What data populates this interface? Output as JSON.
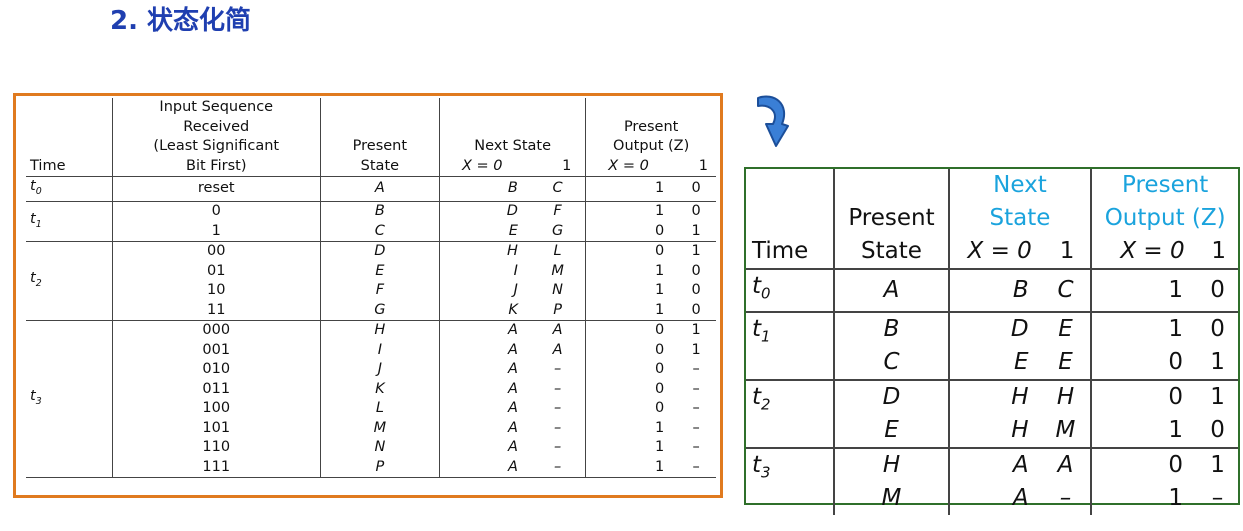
{
  "title": "2. 状态化简",
  "left_table": {
    "headers": {
      "time": "Time",
      "input_l1": "Input Sequence",
      "input_l2": "Received",
      "input_l3": "(Least Significant",
      "input_l4": "Bit First)",
      "ps_l1": "Present",
      "ps_l2": "State",
      "next_l1": "Next State",
      "next_x0": "X = 0",
      "next_x1": "1",
      "out_l1": "Present",
      "out_l2": "Output (Z)",
      "out_x0": "X = 0",
      "out_x1": "1"
    },
    "groups": [
      {
        "time": "t0",
        "rows": [
          {
            "input": "reset",
            "ps": "A",
            "n0": "B",
            "n1": "C",
            "o0": "1",
            "o1": "0"
          }
        ]
      },
      {
        "time": "t1",
        "rows": [
          {
            "input": "0",
            "ps": "B",
            "n0": "D",
            "n1": "F",
            "o0": "1",
            "o1": "0"
          },
          {
            "input": "1",
            "ps": "C",
            "n0": "E",
            "n1": "G",
            "o0": "0",
            "o1": "1"
          }
        ]
      },
      {
        "time": "t2",
        "rows": [
          {
            "input": "00",
            "ps": "D",
            "n0": "H",
            "n1": "L",
            "o0": "0",
            "o1": "1"
          },
          {
            "input": "01",
            "ps": "E",
            "n0": "I",
            "n1": "M",
            "o0": "1",
            "o1": "0"
          },
          {
            "input": "10",
            "ps": "F",
            "n0": "J",
            "n1": "N",
            "o0": "1",
            "o1": "0"
          },
          {
            "input": "11",
            "ps": "G",
            "n0": "K",
            "n1": "P",
            "o0": "1",
            "o1": "0"
          }
        ]
      },
      {
        "time": "t3",
        "rows": [
          {
            "input": "000",
            "ps": "H",
            "n0": "A",
            "n1": "A",
            "o0": "0",
            "o1": "1"
          },
          {
            "input": "001",
            "ps": "I",
            "n0": "A",
            "n1": "A",
            "o0": "0",
            "o1": "1"
          },
          {
            "input": "010",
            "ps": "J",
            "n0": "A",
            "n1": "–",
            "o0": "0",
            "o1": "–"
          },
          {
            "input": "011",
            "ps": "K",
            "n0": "A",
            "n1": "–",
            "o0": "0",
            "o1": "–"
          },
          {
            "input": "100",
            "ps": "L",
            "n0": "A",
            "n1": "–",
            "o0": "0",
            "o1": "–"
          },
          {
            "input": "101",
            "ps": "M",
            "n0": "A",
            "n1": "–",
            "o0": "1",
            "o1": "–"
          },
          {
            "input": "110",
            "ps": "N",
            "n0": "A",
            "n1": "–",
            "o0": "1",
            "o1": "–"
          },
          {
            "input": "111",
            "ps": "P",
            "n0": "A",
            "n1": "–",
            "o0": "1",
            "o1": "–"
          }
        ]
      }
    ]
  },
  "right_table": {
    "headers": {
      "time": "Time",
      "ps_l1": "Present",
      "ps_l2": "State",
      "next_l1": "Next",
      "next_l2": "State",
      "next_x0": "X = 0",
      "next_x1": "1",
      "out_l1": "Present",
      "out_l2": "Output (Z)",
      "out_x0": "X = 0",
      "out_x1": "1"
    },
    "groups": [
      {
        "time": "t0",
        "rows": [
          {
            "ps": "A",
            "n0": "B",
            "n1": "C",
            "o0": "1",
            "o1": "0"
          }
        ]
      },
      {
        "time": "t1",
        "rows": [
          {
            "ps": "B",
            "n0": "D",
            "n1": "E",
            "o0": "1",
            "o1": "0"
          },
          {
            "ps": "C",
            "n0": "E",
            "n1": "E",
            "o0": "0",
            "o1": "1"
          }
        ]
      },
      {
        "time": "t2",
        "rows": [
          {
            "ps": "D",
            "n0": "H",
            "n1": "H",
            "o0": "0",
            "o1": "1"
          },
          {
            "ps": "E",
            "n0": "H",
            "n1": "M",
            "o0": "1",
            "o1": "0"
          }
        ]
      },
      {
        "time": "t3",
        "rows": [
          {
            "ps": "H",
            "n0": "A",
            "n1": "A",
            "o0": "0",
            "o1": "1"
          },
          {
            "ps": "M",
            "n0": "A",
            "n1": "–",
            "o0": "1",
            "o1": "–"
          }
        ]
      }
    ]
  },
  "colors": {
    "title": "#1f3fb0",
    "left_border": "#e07a1f",
    "right_border": "#2f6f2a",
    "header_highlight": "#1aa3dd",
    "arrow": "#3a7fd6"
  },
  "icons": {
    "arrow": "curved-down-arrow-icon"
  }
}
